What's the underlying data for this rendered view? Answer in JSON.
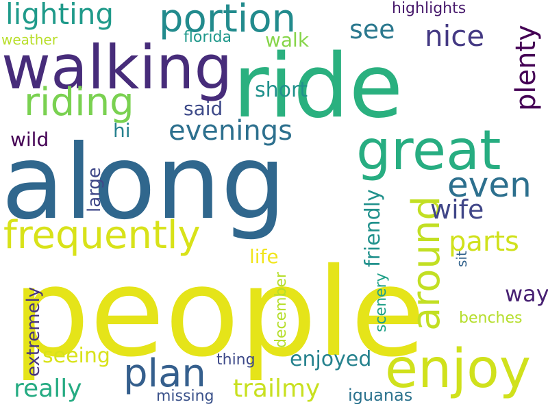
{
  "words": [
    {
      "id": "people",
      "text": "people",
      "color": "#e5e419",
      "vertical": false
    },
    {
      "id": "along",
      "text": "along",
      "color": "#30678d",
      "vertical": false
    },
    {
      "id": "ride",
      "text": "ride",
      "color": "#2ab07f",
      "vertical": false
    },
    {
      "id": "walking",
      "text": "walking",
      "color": "#472c7a",
      "vertical": false
    },
    {
      "id": "great",
      "text": "great",
      "color": "#27ad81",
      "vertical": false
    },
    {
      "id": "enjoy",
      "text": "enjoy",
      "color": "#d0e11c",
      "vertical": false
    },
    {
      "id": "portion",
      "text": "portion",
      "color": "#228b8d",
      "vertical": false
    },
    {
      "id": "frequently",
      "text": "frequently",
      "color": "#d8e219",
      "vertical": false
    },
    {
      "id": "riding",
      "text": "riding",
      "color": "#7ad151",
      "vertical": false
    },
    {
      "id": "lighting",
      "text": "lighting",
      "color": "#1f9a8a",
      "vertical": false
    },
    {
      "id": "around",
      "text": "around",
      "color": "#c2df23",
      "vertical": true
    },
    {
      "id": "plan",
      "text": "plan",
      "color": "#355f8d",
      "vertical": false
    },
    {
      "id": "even",
      "text": "even",
      "color": "#2d708e",
      "vertical": false
    },
    {
      "id": "evenings",
      "text": "evenings",
      "color": "#2d708e",
      "vertical": false
    },
    {
      "id": "plenty",
      "text": "plenty",
      "color": "#440154",
      "vertical": true
    },
    {
      "id": "nice",
      "text": "nice",
      "color": "#443983",
      "vertical": false
    },
    {
      "id": "parts",
      "text": "parts",
      "color": "#d0e11c",
      "vertical": false
    },
    {
      "id": "see",
      "text": "see",
      "color": "#2a788e",
      "vertical": false
    },
    {
      "id": "wife",
      "text": "wife",
      "color": "#404688",
      "vertical": false
    },
    {
      "id": "trailmy",
      "text": "trailmy",
      "color": "#c8e020",
      "vertical": false
    },
    {
      "id": "enjoyed",
      "text": "enjoyed",
      "color": "#26828e",
      "vertical": false
    },
    {
      "id": "really",
      "text": "really",
      "color": "#25ab82",
      "vertical": false
    },
    {
      "id": "seeing",
      "text": "seeing",
      "color": "#d8e219",
      "vertical": false
    },
    {
      "id": "short",
      "text": "short",
      "color": "#21918c",
      "vertical": false
    },
    {
      "id": "friendly",
      "text": "friendly",
      "color": "#21918c",
      "vertical": true
    },
    {
      "id": "extremely",
      "text": "extremely",
      "color": "#46337f",
      "vertical": true
    },
    {
      "id": "way",
      "text": "way",
      "color": "#482173",
      "vertical": false
    },
    {
      "id": "life",
      "text": "life",
      "color": "#f1e51d",
      "vertical": false
    },
    {
      "id": "said",
      "text": "said",
      "color": "#3e4a89",
      "vertical": false
    },
    {
      "id": "wild",
      "text": "wild",
      "color": "#440154",
      "vertical": false
    },
    {
      "id": "walk",
      "text": "walk",
      "color": "#86d549",
      "vertical": false
    },
    {
      "id": "large",
      "text": "large",
      "color": "#3f4788",
      "vertical": true
    },
    {
      "id": "hi",
      "text": "hi",
      "color": "#26818e",
      "vertical": false
    },
    {
      "id": "scenery",
      "text": "scenery",
      "color": "#1fa088",
      "vertical": true
    },
    {
      "id": "december",
      "text": "december",
      "color": "#b5de2b",
      "vertical": true
    },
    {
      "id": "sit",
      "text": "sit",
      "color": "#33638d",
      "vertical": true
    },
    {
      "id": "benches",
      "text": "benches",
      "color": "#b5de2b",
      "vertical": false
    },
    {
      "id": "iguanas",
      "text": "iguanas",
      "color": "#2c738e",
      "vertical": false
    },
    {
      "id": "missing",
      "text": "missing",
      "color": "#3b528b",
      "vertical": false
    },
    {
      "id": "thing",
      "text": "thing",
      "color": "#3e4a89",
      "vertical": false
    },
    {
      "id": "highlights",
      "text": "highlights",
      "color": "#481a6c",
      "vertical": false
    },
    {
      "id": "florida",
      "text": "florida",
      "color": "#1f988b",
      "vertical": false
    },
    {
      "id": "weather",
      "text": "weather",
      "color": "#b8de29",
      "vertical": false
    }
  ]
}
